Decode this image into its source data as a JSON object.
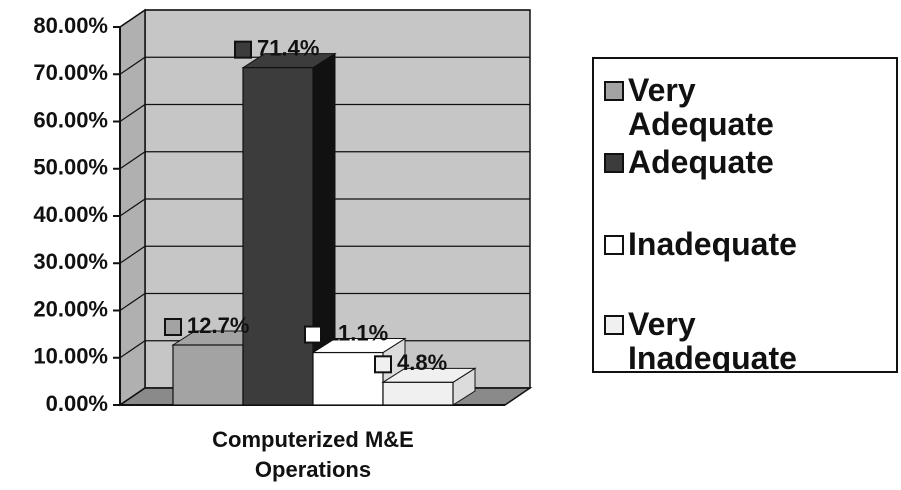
{
  "chart_data": {
    "type": "bar3d",
    "categories": [
      "Computerized M&E Operations"
    ],
    "series": [
      {
        "name": "Very Adequate",
        "color": "#a3a3a3",
        "values": [
          12.7
        ],
        "value_labels": [
          "12.7%"
        ]
      },
      {
        "name": "Adequate",
        "color": "#3c3c3c",
        "values": [
          71.4
        ],
        "value_labels": [
          "71.4%"
        ]
      },
      {
        "name": "Inadequate",
        "color": "#ffffff",
        "values": [
          11.1
        ],
        "value_labels": [
          "11.1%"
        ]
      },
      {
        "name": "Very Inadequate",
        "color": "#f0f0f0",
        "values": [
          4.8
        ],
        "value_labels": [
          "4.8%"
        ]
      }
    ],
    "ylim": [
      0,
      80
    ],
    "yticks": [
      {
        "value": 0,
        "label": "0.00%"
      },
      {
        "value": 10,
        "label": "10.00%"
      },
      {
        "value": 20,
        "label": "20.00%"
      },
      {
        "value": 30,
        "label": "30.00%"
      },
      {
        "value": 40,
        "label": "40.00%"
      },
      {
        "value": 50,
        "label": "50.00%"
      },
      {
        "value": 60,
        "label": "60.00%"
      },
      {
        "value": 70,
        "label": "70.00%"
      },
      {
        "value": 80,
        "label": "80.00%"
      }
    ],
    "grid": true,
    "legend": "right"
  }
}
